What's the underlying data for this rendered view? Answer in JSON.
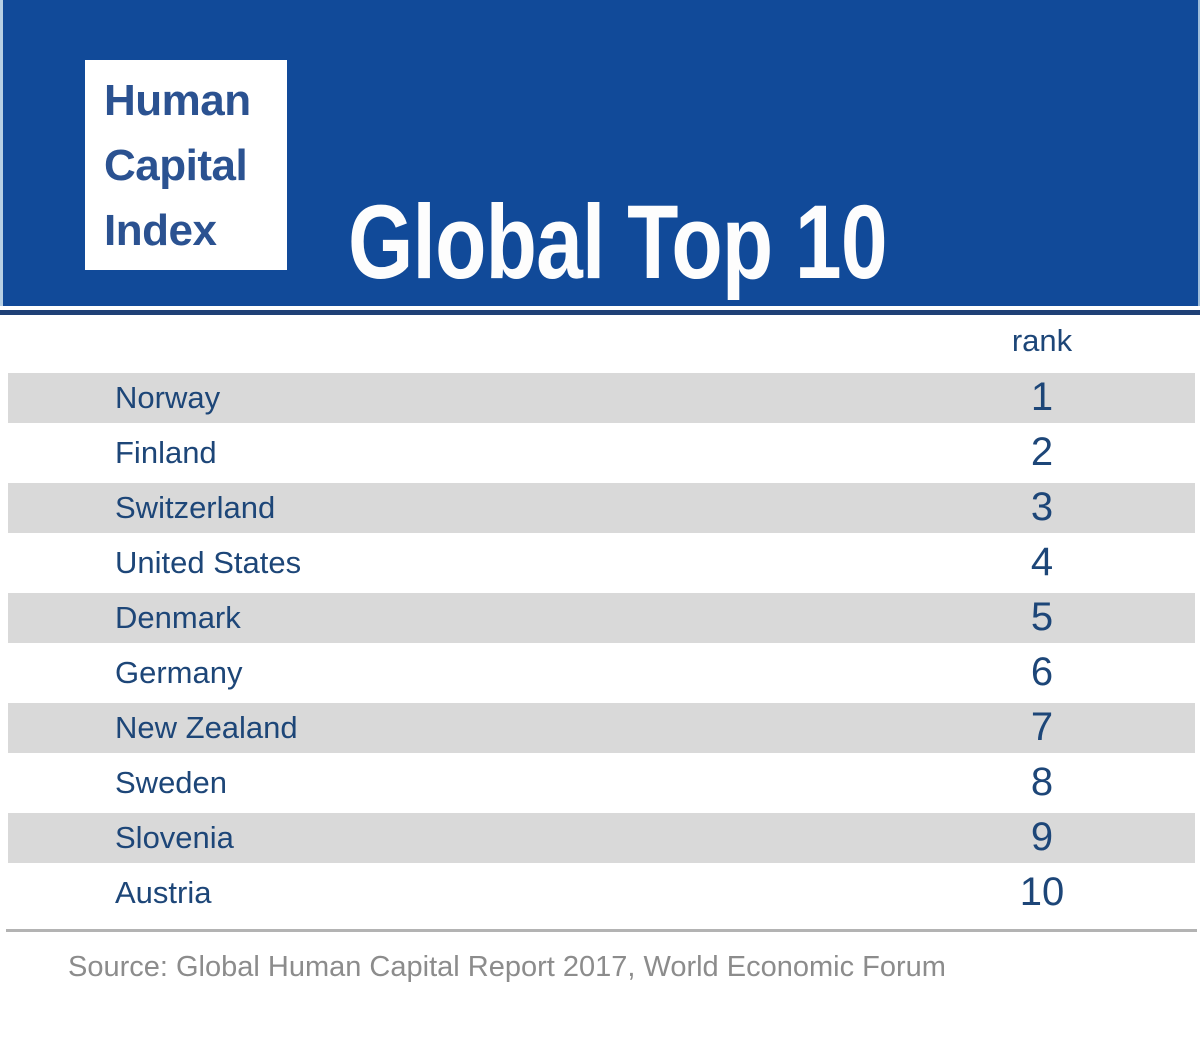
{
  "banner": {
    "logo_lines": [
      "Human",
      "Capital",
      "Index"
    ],
    "title": "Global Top 10",
    "background_color": "#114A99",
    "logo_text_color": "#2B5291",
    "title_color": "#FDFDFD"
  },
  "table": {
    "rank_header": "rank",
    "text_color": "#1D4678",
    "shaded_row_color": "#D9D9D9",
    "rows": [
      {
        "country": "Norway",
        "rank": "1"
      },
      {
        "country": "Finland",
        "rank": "2"
      },
      {
        "country": "Switzerland",
        "rank": "3"
      },
      {
        "country": "United States",
        "rank": "4"
      },
      {
        "country": "Denmark",
        "rank": "5"
      },
      {
        "country": "Germany",
        "rank": "6"
      },
      {
        "country": "New Zealand",
        "rank": "7"
      },
      {
        "country": "Sweden",
        "rank": "8"
      },
      {
        "country": "Slovenia",
        "rank": "9"
      },
      {
        "country": "Austria",
        "rank": "10"
      }
    ]
  },
  "footer": {
    "source": "Source: Global Human Capital Report 2017, World Economic Forum",
    "text_color": "#8C8C8C"
  },
  "chart_data": {
    "type": "table",
    "title": "Global Top 10",
    "columns": [
      "country",
      "rank"
    ],
    "rows": [
      [
        "Norway",
        1
      ],
      [
        "Finland",
        2
      ],
      [
        "Switzerland",
        3
      ],
      [
        "United States",
        4
      ],
      [
        "Denmark",
        5
      ],
      [
        "Germany",
        6
      ],
      [
        "New Zealand",
        7
      ],
      [
        "Sweden",
        8
      ],
      [
        "Slovenia",
        9
      ],
      [
        "Austria",
        10
      ]
    ],
    "shaded_rows": [
      1,
      3,
      5,
      7,
      9
    ],
    "source": "Source: Global Human Capital Report 2017, World Economic Forum"
  }
}
